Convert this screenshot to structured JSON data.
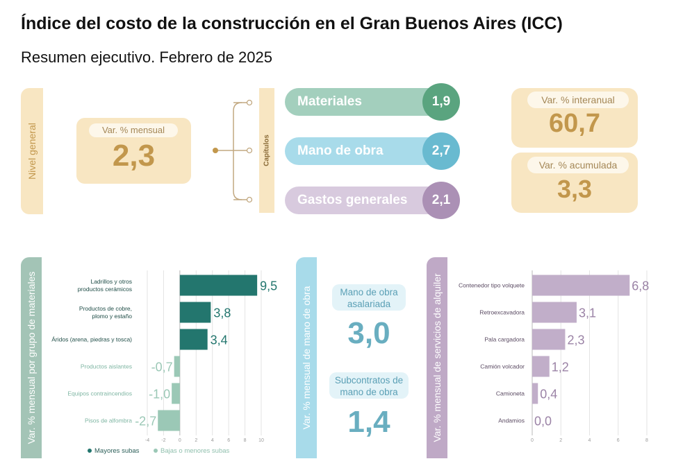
{
  "header": {
    "title": "Índice del costo de la construcción en el Gran Buenos Aires (ICC)",
    "subtitle": "Resumen ejecutivo. Febrero de 2025"
  },
  "nivel_general": {
    "side_label": "Nivel general",
    "pill_label": "Var. % mensual",
    "value": "2,3"
  },
  "capitulos": {
    "side_label": "Capítulos",
    "items": [
      {
        "label": "Materiales",
        "value": "1,9"
      },
      {
        "label": "Mano de obra",
        "value": "2,7"
      },
      {
        "label": "Gastos generales",
        "value": "2,1"
      }
    ]
  },
  "right_cards": {
    "interanual": {
      "label": "Var. % interanual",
      "value": "60,7"
    },
    "acumulada": {
      "label": "Var. % acumulada",
      "value": "3,3"
    }
  },
  "mano_de_obra": {
    "side_label": "Var. % mensual de mano de obra",
    "asalariada": {
      "label": "Mano de obra asalariada",
      "value": "3,0"
    },
    "subcontratos": {
      "label": "Subcontratos de mano de obra",
      "value": "1,4"
    }
  },
  "legend": {
    "mayores": "Mayores subas",
    "bajas": "Bajas o menores subas"
  },
  "colors": {
    "materiales": "#a3cfbd",
    "materiales_circle": "#5aa47f",
    "mano_obra": "#a8dbea",
    "mano_obra_circle": "#69bad0",
    "gastos": "#d8cade",
    "gastos_circle": "#ab90b5",
    "mat_dark": "#23766e",
    "mat_light": "#9bc8b6",
    "alq": "#c1aec9"
  },
  "chart_data": [
    {
      "type": "bar",
      "orientation": "horizontal",
      "ylabel": "Var. % mensual por grupo de materiales",
      "categories": [
        "Ladrillos y otros productos cerámicos",
        "Productos de cobre, plomo y estaño",
        "Áridos (arena, piedras y tosca)",
        "Productos aislantes",
        "Equipos contraincendios",
        "Pisos de alfombra"
      ],
      "category_lines": [
        [
          "Ladrillos y otros",
          "productos cerámicos"
        ],
        [
          "Productos de cobre,",
          "plomo y estaño"
        ],
        [
          "Áridos (arena, piedras y tosca)"
        ],
        [
          "Productos aislantes"
        ],
        [
          "Equipos contraincendios"
        ],
        [
          "Pisos de alfombra"
        ]
      ],
      "values": [
        9.5,
        3.8,
        3.4,
        -0.7,
        -1.0,
        -2.7
      ],
      "value_labels": [
        "9,5",
        "3,8",
        "3,4",
        "-0,7",
        "-1,0",
        "-2,7"
      ],
      "groups": [
        "mayores",
        "mayores",
        "mayores",
        "bajas",
        "bajas",
        "bajas"
      ],
      "xlim": [
        -4,
        10
      ],
      "xticks": [
        -4,
        -2,
        0,
        2,
        4,
        6,
        8,
        10
      ],
      "grid": true,
      "legend": "bottom"
    },
    {
      "type": "bar",
      "orientation": "horizontal",
      "ylabel": "Var. % mensual de servicios de alquiler",
      "categories": [
        "Contenedor tipo volquete",
        "Retroexcavadora",
        "Pala cargadora",
        "Camión volcador",
        "Camioneta",
        "Andamios"
      ],
      "values": [
        6.8,
        3.1,
        2.3,
        1.2,
        0.4,
        0.0
      ],
      "value_labels": [
        "6,8",
        "3,1",
        "2,3",
        "1,2",
        "0,4",
        "0,0"
      ],
      "xlim": [
        0,
        8
      ],
      "xticks": [
        0,
        2,
        4,
        6,
        8
      ],
      "grid": true
    }
  ]
}
